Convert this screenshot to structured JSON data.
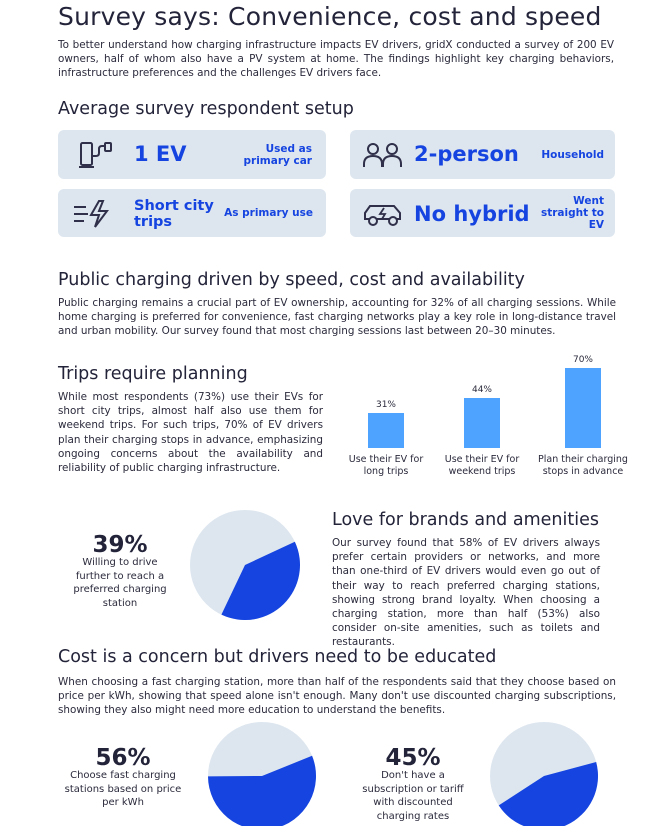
{
  "header": {
    "title": "Survey says: Convenience, cost and speed",
    "intro": "To better understand how charging infrastructure impacts EV drivers, gridX conducted a survey of 200 EV owners, half of whom also have a PV system at home. The findings highlight key charging behaviors, infrastructure preferences and the challenges EV drivers face."
  },
  "setup": {
    "title": "Average survey respondent setup",
    "cards": [
      {
        "main": "1 EV",
        "side": "Used as primary car",
        "icon": "ev-charger-icon"
      },
      {
        "main": "2-person",
        "side": "Household",
        "icon": "people-icon"
      },
      {
        "main": "Short city trips",
        "side": "As primary use",
        "icon": "speed-bolt-icon"
      },
      {
        "main": "No hybrid",
        "side": "Went straight to EV",
        "icon": "electric-car-icon"
      }
    ]
  },
  "public": {
    "title": "Public charging driven by speed, cost and availability",
    "text": "Public charging remains a crucial part of EV ownership, accounting for 32% of all charging sessions. While home charging is preferred for convenience, fast charging networks play a key role in long-distance travel and urban mobility. Our survey found that most charging sessions last between 20–30 minutes."
  },
  "trips": {
    "title": "Trips require planning",
    "text": "While most respondents (73%) use their EVs for short city trips, almost half also use them for weekend trips. For such trips, 70% of EV drivers plan their charging stops in advance, emphasizing ongoing concerns about the availability and reliability of public charging infrastructure."
  },
  "chart_data": [
    {
      "type": "bar",
      "categories": [
        "Use their EV for long trips",
        "Use their EV for weekend trips",
        "Plan their charging stops in advance"
      ],
      "values": [
        31,
        44,
        70
      ],
      "value_labels": [
        "31%",
        "44%",
        "70%"
      ],
      "ylim": [
        0,
        70
      ],
      "color": "#4da3ff"
    },
    {
      "type": "pie",
      "labels": [
        "Willing to drive further",
        "Other"
      ],
      "values": [
        39,
        61
      ],
      "colors": [
        "#1544e0",
        "#dde6ef"
      ]
    },
    {
      "type": "pie",
      "labels": [
        "Choose based on price per kWh",
        "Other"
      ],
      "values": [
        56,
        44
      ],
      "colors": [
        "#1544e0",
        "#dde6ef"
      ]
    },
    {
      "type": "pie",
      "labels": [
        "No discounted subscription",
        "Other"
      ],
      "values": [
        45,
        55
      ],
      "colors": [
        "#1544e0",
        "#dde6ef"
      ]
    }
  ],
  "brands": {
    "stat": "39%",
    "stat_text": "Willing to drive further to reach a preferred charging station",
    "title": "Love for brands and amenities",
    "text": "Our survey found that 58% of EV drivers always prefer certain providers or networks, and more than one-third of EV drivers would even go out of their way to reach preferred charging stations, showing strong brand loyalty. When choosing a charging station, more than half (53%) also consider on-site amenities, such as toilets and restaurants."
  },
  "cost": {
    "title": "Cost is a concern but drivers need to be educated",
    "text": "When choosing a fast charging station, more than half of the respondents said that they choose based on price per kWh, showing that speed alone isn't enough. Many don't use discounted charging subscriptions, showing they also might need more education to understand the benefits.",
    "stat1": "56%",
    "stat1_text": "Choose fast charging stations based on price per kWh",
    "stat2": "45%",
    "stat2_text": "Don't have a subscription or tariff with discounted charging rates"
  },
  "colors": {
    "accent": "#1544e0",
    "card_bg": "#dde6ef",
    "bar": "#4da3ff"
  }
}
